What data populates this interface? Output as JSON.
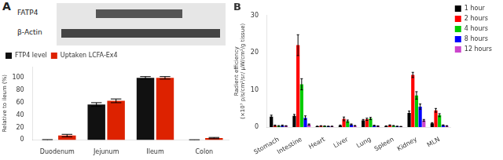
{
  "chart_data": [
    {
      "type": "bar",
      "title": "A",
      "annotations": [
        "FATP4",
        "β-Actin"
      ],
      "categories": [
        "Duodenum",
        "Jejunum",
        "Ileum",
        "Colon"
      ],
      "series": [
        {
          "name": "FTP4 level",
          "color": "#111111",
          "values": [
            0,
            57,
            100,
            0
          ],
          "errors": [
            0.5,
            3,
            2,
            0.3
          ]
        },
        {
          "name": "Uptaken LCFA-Ex4",
          "color": "#dd2200",
          "values": [
            7,
            63,
            100,
            3
          ],
          "errors": [
            2,
            3,
            2,
            1
          ]
        }
      ],
      "ylabel": "Relative to ileum (%)",
      "ylim": [
        0,
        118
      ],
      "yticks": [
        0,
        20,
        40,
        60,
        80,
        100
      ],
      "grid": false,
      "legend": "upper left"
    },
    {
      "type": "bar",
      "title": "B",
      "categories": [
        "Stomach",
        "Intestine",
        "Heart",
        "Liver",
        "Lung",
        "Spleen",
        "Kidney",
        "MLN"
      ],
      "series": [
        {
          "name": "1 hour",
          "color": "#000000",
          "values": [
            2.8,
            3.0,
            0.2,
            0.4,
            1.8,
            0.25,
            3.8,
            1.0
          ],
          "errors": [
            0.4,
            0.4,
            0.05,
            0.15,
            0.25,
            0.08,
            0.5,
            0.2
          ]
        },
        {
          "name": "2 hours",
          "color": "#ff0000",
          "values": [
            0.4,
            22.0,
            0.3,
            2.2,
            2.1,
            0.5,
            14.0,
            4.5
          ],
          "errors": [
            0.15,
            2.8,
            0.08,
            0.5,
            0.3,
            0.1,
            0.7,
            0.5
          ]
        },
        {
          "name": "4 hours",
          "color": "#00cc00",
          "values": [
            0.3,
            11.5,
            0.25,
            1.6,
            2.3,
            0.35,
            8.5,
            3.2
          ],
          "errors": [
            0.1,
            1.5,
            0.05,
            0.3,
            0.3,
            0.08,
            1.0,
            0.4
          ]
        },
        {
          "name": "8 hours",
          "color": "#0000ff",
          "values": [
            0.4,
            2.5,
            0.2,
            0.7,
            0.4,
            0.2,
            5.5,
            0.5
          ],
          "errors": [
            0.15,
            0.5,
            0.05,
            0.15,
            0.1,
            0.05,
            0.7,
            0.1
          ]
        },
        {
          "name": "12 hours",
          "color": "#cc44cc",
          "values": [
            0.3,
            0.7,
            0.2,
            0.35,
            0.25,
            0.15,
            1.8,
            0.3
          ],
          "errors": [
            0.08,
            0.15,
            0.04,
            0.08,
            0.08,
            0.04,
            0.25,
            0.08
          ]
        }
      ],
      "ylabel": "Radient efficiency\n(×10⁷ p/s/cm²/sr/ μW/cm²/g tissue)",
      "ylim": [
        0,
        30
      ],
      "yticks": [
        0,
        10,
        20,
        30
      ],
      "grid": false,
      "legend": "right"
    }
  ]
}
